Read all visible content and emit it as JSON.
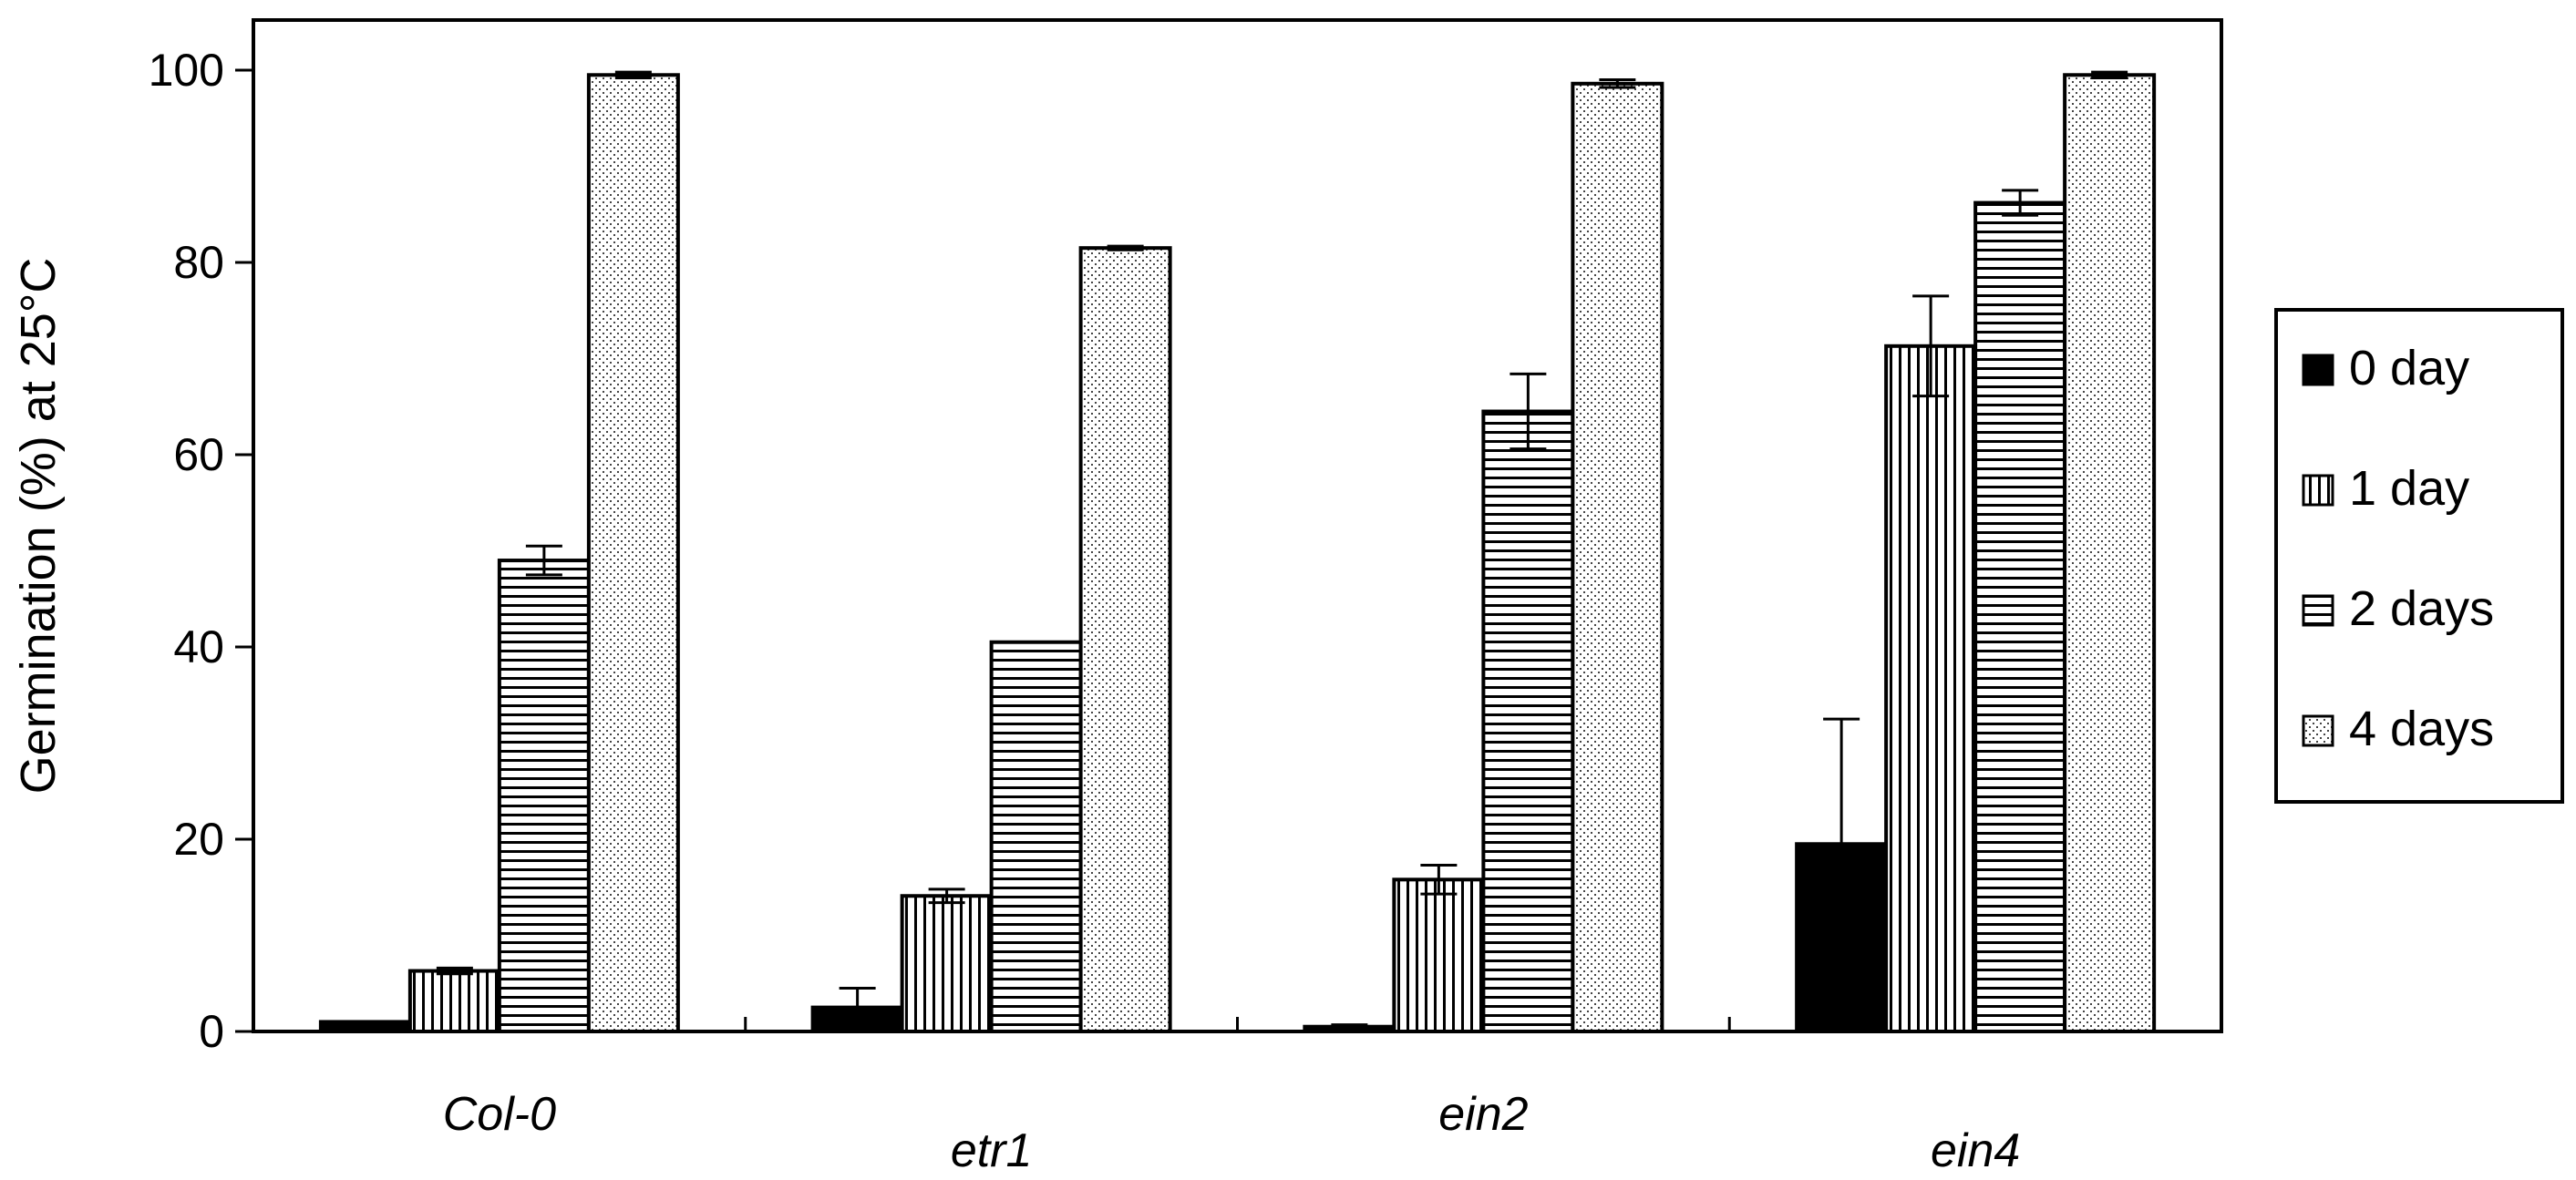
{
  "chart_data": {
    "type": "bar",
    "title": "",
    "xlabel": "",
    "ylabel": "Germination (%) at 25°C",
    "ylim": [
      0,
      100
    ],
    "yticks": [
      0,
      20,
      40,
      60,
      80,
      100
    ],
    "categories": [
      "Col-0",
      "etr1",
      "ein2",
      "ein4"
    ],
    "grid": false,
    "legend": "right",
    "series": [
      {
        "name": "0 day",
        "pattern": "solid",
        "values": [
          1,
          2.5,
          0.5,
          19.5
        ],
        "errors": [
          0,
          2.0,
          0.2,
          13.0
        ]
      },
      {
        "name": "1 day",
        "pattern": "vertical-lines",
        "values": [
          6.3,
          14.1,
          15.8,
          71.3
        ],
        "errors": [
          0.3,
          0.7,
          1.5,
          5.2
        ]
      },
      {
        "name": "2 days",
        "pattern": "horizontal-lines",
        "values": [
          49,
          40.5,
          64.5,
          86.2
        ],
        "errors": [
          1.5,
          0,
          3.9,
          1.3
        ]
      },
      {
        "name": "4 days",
        "pattern": "dots",
        "values": [
          99.5,
          81.5,
          98.6,
          99.5
        ],
        "errors": [
          0.3,
          0.2,
          0.4,
          0.3
        ]
      }
    ],
    "colors": {
      "fill": "#000000",
      "background": "#ffffff"
    }
  }
}
